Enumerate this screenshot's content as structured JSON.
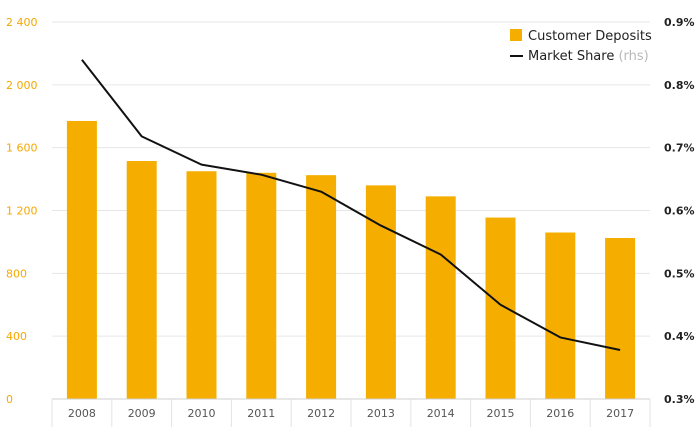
{
  "chart_data": {
    "type": "bar",
    "categories": [
      "2008",
      "2009",
      "2010",
      "2011",
      "2012",
      "2013",
      "2014",
      "2015",
      "2016",
      "2017"
    ],
    "series": [
      {
        "name": "Customer Deposits",
        "kind": "bar",
        "axis": "left",
        "color": "#f5ae00",
        "values": [
          1770,
          1515,
          1450,
          1440,
          1425,
          1360,
          1290,
          1155,
          1060,
          1025
        ]
      },
      {
        "name": "Market Share",
        "note": "(rhs)",
        "kind": "line",
        "axis": "right",
        "color": "#111111",
        "values": [
          0.84,
          0.718,
          0.673,
          0.657,
          0.63,
          0.576,
          0.53,
          0.45,
          0.398,
          0.378
        ]
      }
    ],
    "left_axis": {
      "ylim": [
        0,
        2400
      ],
      "ticks": [
        0,
        400,
        800,
        1200,
        1600,
        2000,
        2400
      ],
      "tick_labels": [
        "0",
        "400",
        "800",
        "1 200",
        "1 600",
        "2 000",
        "2 400"
      ],
      "color": "#f5a800"
    },
    "right_axis": {
      "ylim": [
        0.3,
        0.9
      ],
      "ticks": [
        0.3,
        0.4,
        0.5,
        0.6,
        0.7,
        0.8,
        0.9
      ],
      "tick_labels": [
        "0.3%",
        "0.4%",
        "0.5%",
        "0.6%",
        "0.7%",
        "0.8%",
        "0.9%"
      ]
    },
    "legend_position": "top-right",
    "grid": true
  }
}
